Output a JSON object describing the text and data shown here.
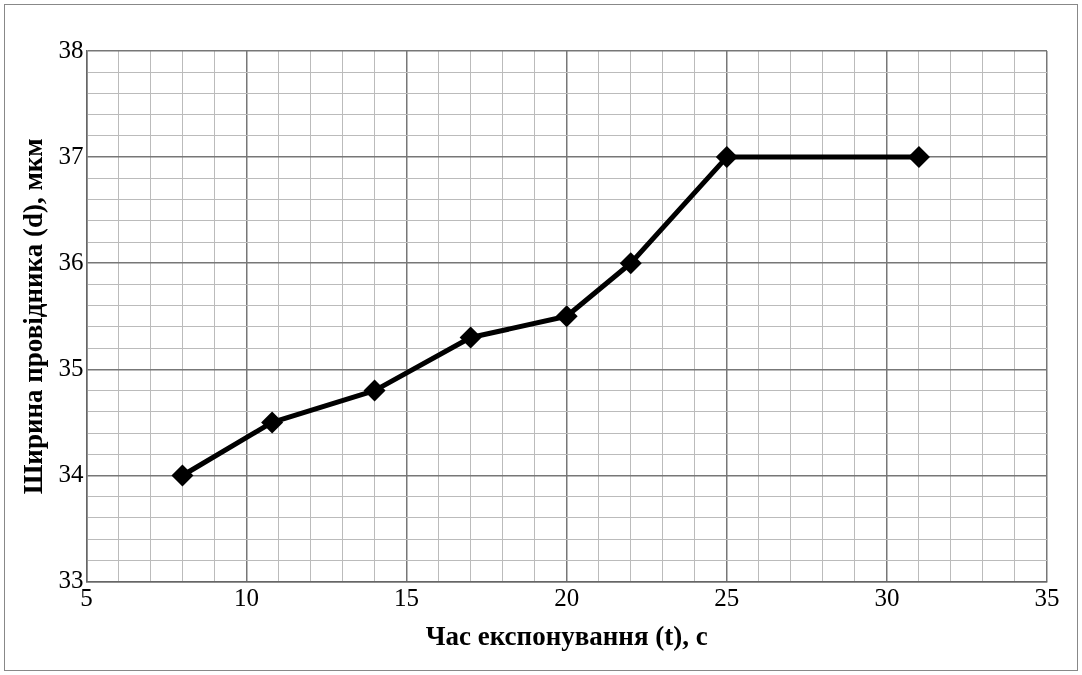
{
  "chart_data": {
    "type": "line",
    "xlabel": "Час експонування (t), с",
    "ylabel": "Ширина провідника (d), мкм",
    "x": [
      8,
      10.8,
      14,
      17,
      20,
      22,
      25,
      31
    ],
    "series": [
      {
        "color": "#000000",
        "values": [
          34,
          34.5,
          34.8,
          35.3,
          35.5,
          36,
          37,
          37
        ]
      }
    ],
    "xlim": [
      5,
      35
    ],
    "xticks": [
      5,
      {
        "value": 6,
        "label": null
      },
      {
        "value": 7,
        "label": null
      },
      {
        "value": 8,
        "label": null
      },
      {
        "value": 9,
        "label": null
      },
      10,
      {
        "value": 11,
        "label": null
      },
      {
        "value": 12,
        "label": null
      },
      {
        "value": 13,
        "label": null
      },
      {
        "value": 14,
        "label": null
      },
      15,
      {
        "value": 16,
        "label": null
      },
      {
        "value": 17,
        "label": null
      },
      {
        "value": 18,
        "label": null
      },
      {
        "value": 19,
        "label": null
      },
      20,
      {
        "value": 21,
        "label": null
      },
      {
        "value": 22,
        "label": null
      },
      {
        "value": 23,
        "label": null
      },
      {
        "value": 24,
        "label": null
      },
      25,
      {
        "value": 26,
        "label": null
      },
      {
        "value": 27,
        "label": null
      },
      {
        "value": 28,
        "label": null
      },
      {
        "value": 29,
        "label": null
      },
      30,
      {
        "value": 31,
        "label": null
      },
      {
        "value": 32,
        "label": null
      },
      {
        "value": 33,
        "label": null
      },
      {
        "value": 34,
        "label": null
      },
      35
    ],
    "ylim": [
      33,
      38
    ],
    "yticks": [
      33,
      {
        "value": 33.2,
        "label": null
      },
      {
        "value": 33.4,
        "label": null
      },
      {
        "value": 33.6,
        "label": null
      },
      {
        "value": 33.8,
        "label": null
      },
      34,
      {
        "value": 34.2,
        "label": null
      },
      {
        "value": 34.4,
        "label": null
      },
      {
        "value": 34.6,
        "label": null
      },
      {
        "value": 34.8,
        "label": null
      },
      35,
      {
        "value": 35.2,
        "label": null
      },
      {
        "value": 35.4,
        "label": null
      },
      {
        "value": 35.6,
        "label": null
      },
      {
        "value": 35.8,
        "label": null
      },
      36,
      {
        "value": 36.2,
        "label": null
      },
      {
        "value": 36.4,
        "label": null
      },
      {
        "value": 36.6,
        "label": null
      },
      {
        "value": 36.8,
        "label": null
      },
      37,
      {
        "value": 37.2,
        "label": null
      },
      {
        "value": 37.4,
        "label": null
      },
      {
        "value": 37.6,
        "label": null
      },
      {
        "value": 37.8,
        "label": null
      },
      38
    ],
    "grid": true,
    "legend": false,
    "marker": "diamond",
    "line_style": "solid"
  }
}
